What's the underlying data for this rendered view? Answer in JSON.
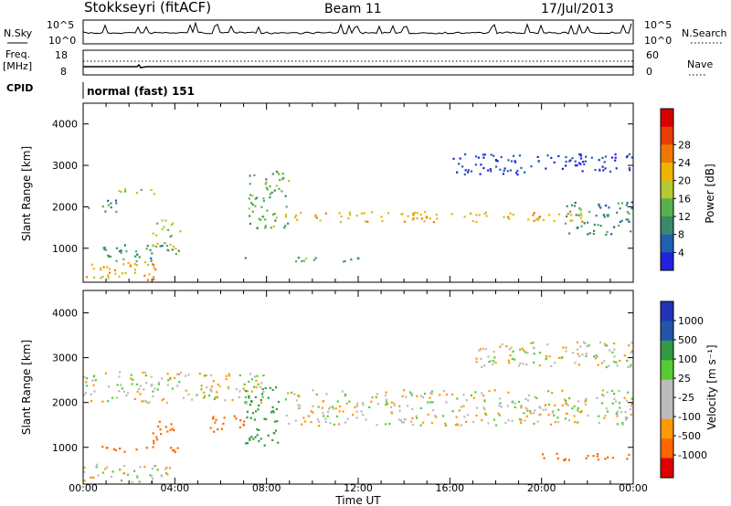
{
  "header": {
    "station": "Stokkseyri (fitACF)",
    "beam": "Beam 11",
    "date": "17/Jul/2013"
  },
  "top_panels": {
    "nsky_label": "N.Sky",
    "nsky_ticks": [
      "10^5",
      "10^0"
    ],
    "nsearch_label": "N.Search",
    "nsearch_ticks": [
      "10^5",
      "10^0"
    ],
    "freq_label_1": "Freq.",
    "freq_label_2": "[MHz]",
    "freq_ticks": [
      "18",
      "8"
    ],
    "nave_label": "Nave",
    "nave_ticks": [
      "60",
      "0"
    ],
    "cpid_label": "CPID",
    "cpid_text": "normal (fast) 151"
  },
  "colors": {
    "power": [
      "#2222dd",
      "#2060b0",
      "#3a8a6a",
      "#58b04c",
      "#b6c832",
      "#f0b400",
      "#f07800",
      "#e83c00",
      "#d80000"
    ],
    "velocity": [
      "#e00000",
      "#ff6600",
      "#ff9900",
      "#bbbbbb",
      "#bbbbbb",
      "#55cc33",
      "#339944",
      "#2255aa",
      "#2233bb"
    ]
  },
  "chart_data": [
    {
      "type": "heatmap",
      "name": "power",
      "ylabel": "Slant Range [km]",
      "xlabel": "",
      "xlim": [
        0,
        24
      ],
      "ylim": [
        180,
        4500
      ],
      "yticks": [
        "1000",
        "2000",
        "3000",
        "4000"
      ],
      "xticks": [
        "00:00",
        "04:00",
        "08:00",
        "12:00",
        "16:00",
        "20:00",
        "00:00"
      ],
      "colorbar_label": "Power [dB]",
      "colorbar_ticks": [
        "4",
        "8",
        "12",
        "16",
        "20",
        "24",
        "28"
      ],
      "features": [
        {
          "t": [
            0.0,
            3.5
          ],
          "r": [
            250,
            700
          ],
          "value": 24
        },
        {
          "t": [
            0.8,
            4.2
          ],
          "r": [
            700,
            1100
          ],
          "value": 12
        },
        {
          "t": [
            3.0,
            4.2
          ],
          "r": [
            1000,
            1700
          ],
          "value": 20
        },
        {
          "t": [
            1.0,
            3.2
          ],
          "r": [
            2300,
            2450
          ],
          "value": 20
        },
        {
          "t": [
            0.2,
            1.5
          ],
          "r": [
            1900,
            2200
          ],
          "value": 12
        },
        {
          "t": [
            7.2,
            9.0
          ],
          "r": [
            1500,
            2900
          ],
          "value": 16
        },
        {
          "t": [
            8.8,
            22.0
          ],
          "r": [
            1650,
            1900
          ],
          "value": 24
        },
        {
          "t": [
            21.0,
            24.0
          ],
          "r": [
            1350,
            2150
          ],
          "value": 12
        },
        {
          "t": [
            16.0,
            24.0
          ],
          "r": [
            2800,
            3300
          ],
          "value": 6
        },
        {
          "t": [
            7.0,
            12.0
          ],
          "r": [
            700,
            800
          ],
          "value": 16
        }
      ]
    },
    {
      "type": "heatmap",
      "name": "velocity",
      "ylabel": "Slant Range [km]",
      "xlabel": "Time UT",
      "xlim": [
        0,
        24
      ],
      "ylim": [
        180,
        4500
      ],
      "yticks": [
        "1000",
        "2000",
        "3000",
        "4000"
      ],
      "xticks": [
        "00:00",
        "04:00",
        "08:00",
        "12:00",
        "16:00",
        "20:00",
        "00:00"
      ],
      "colorbar_label": "Velocity [m s⁻¹]",
      "colorbar_ticks": [
        "1000",
        "500",
        "100",
        "25",
        "-25",
        "-100",
        "-500",
        "-1000"
      ],
      "features": [
        {
          "t": [
            0.0,
            3.8
          ],
          "r": [
            200,
            650
          ],
          "value": 0
        },
        {
          "t": [
            3.0,
            4.2
          ],
          "r": [
            900,
            1600
          ],
          "value": -300
        },
        {
          "t": [
            0.5,
            3.0
          ],
          "r": [
            900,
            1050
          ],
          "value": -300
        },
        {
          "t": [
            5.5,
            7.0
          ],
          "r": [
            1300,
            1750
          ],
          "value": -300
        },
        {
          "t": [
            7.0,
            8.5
          ],
          "r": [
            1000,
            2400
          ],
          "value": 300
        },
        {
          "t": [
            8.8,
            24.0
          ],
          "r": [
            1500,
            2300
          ],
          "value": 0
        },
        {
          "t": [
            0.0,
            8.0
          ],
          "r": [
            2000,
            2700
          ],
          "value": 0
        },
        {
          "t": [
            17.0,
            24.0
          ],
          "r": [
            2800,
            3400
          ],
          "value": 0
        },
        {
          "t": [
            20.0,
            24.0
          ],
          "r": [
            700,
            900
          ],
          "value": -300
        }
      ]
    }
  ]
}
